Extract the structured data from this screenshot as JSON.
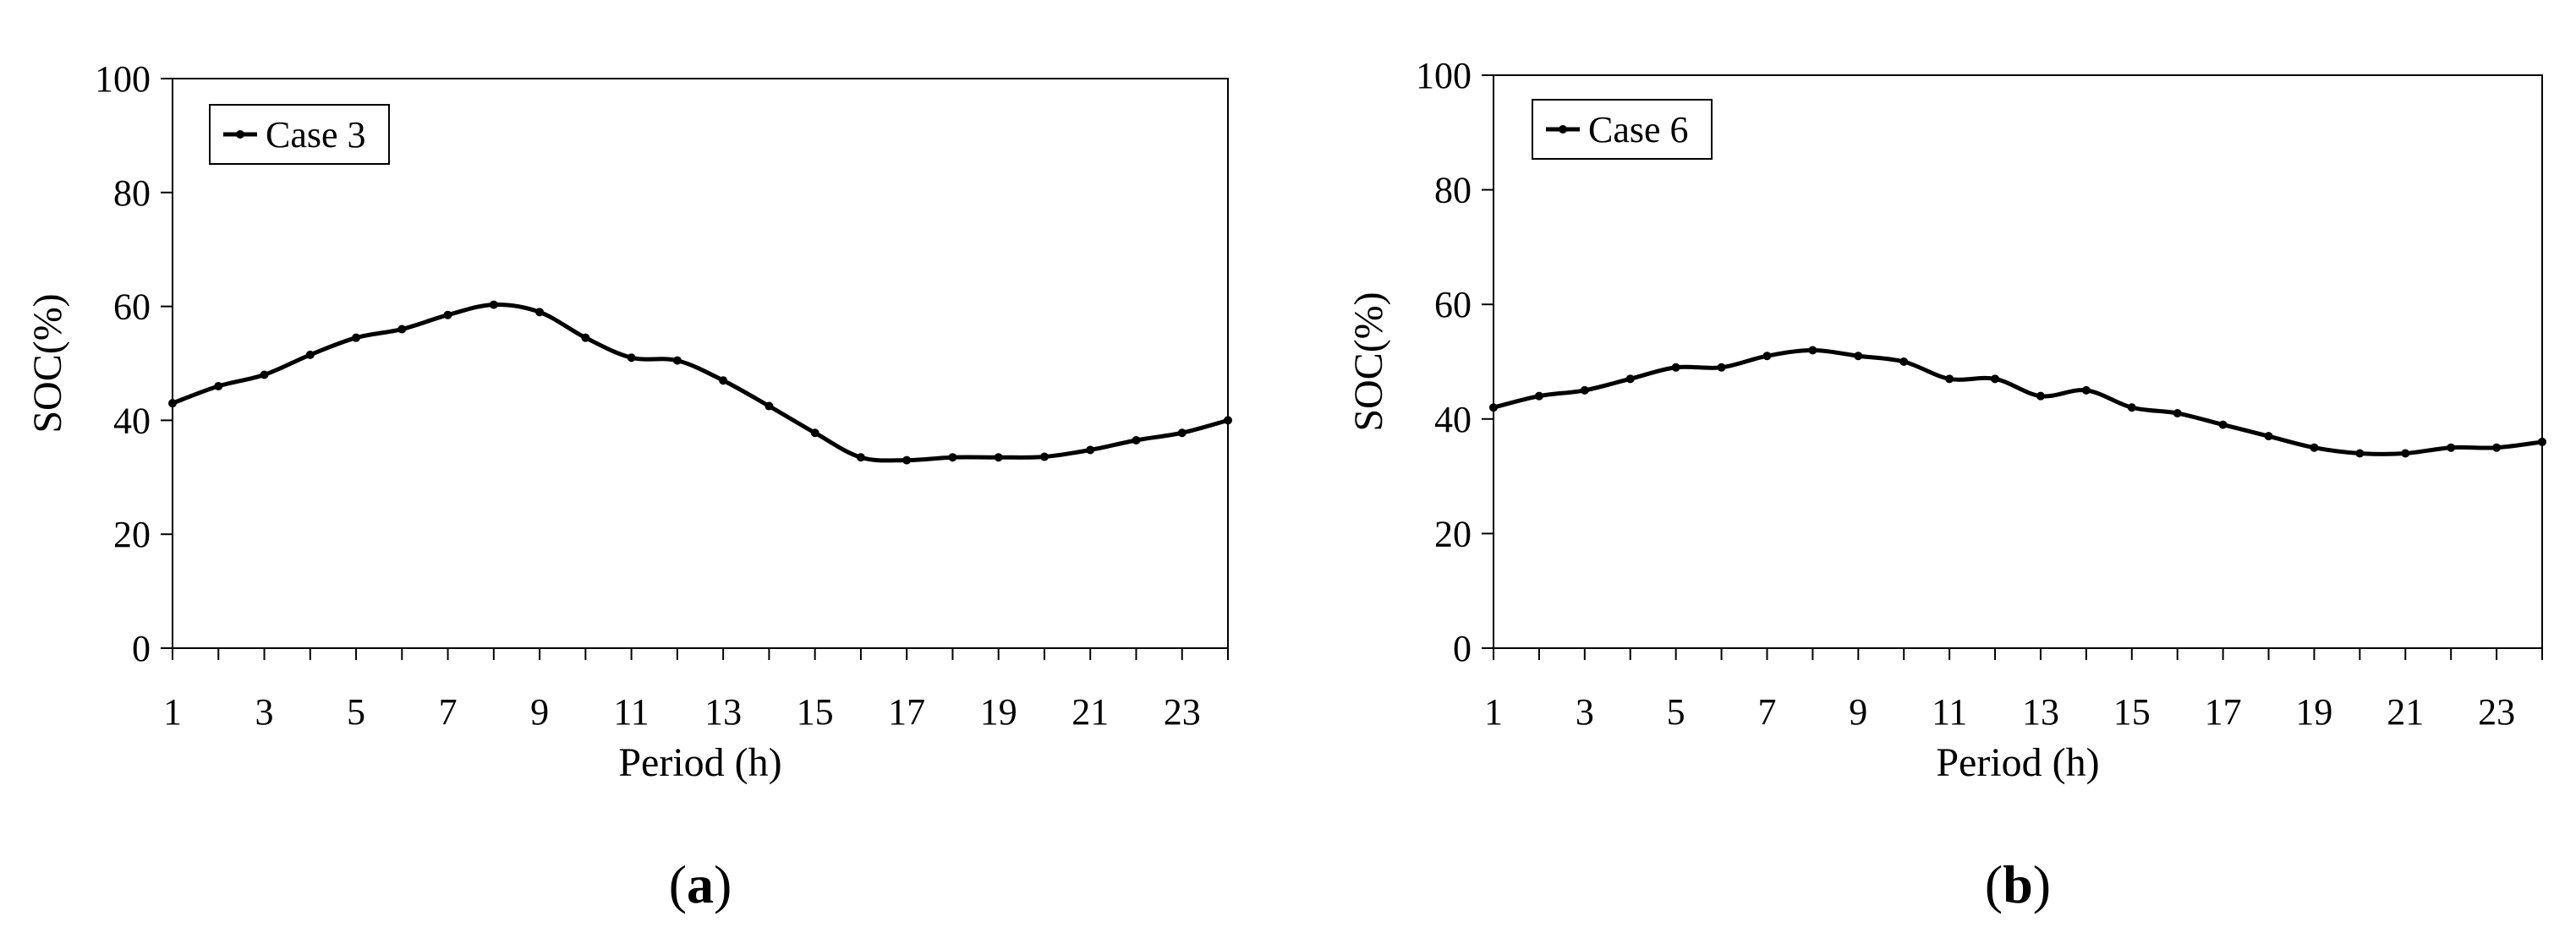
{
  "chart_data": [
    {
      "type": "line",
      "panel_label": "(a)",
      "xlabel": "Period (h)",
      "ylabel": "SOC(%)",
      "xlim": [
        1,
        24
      ],
      "ylim": [
        0,
        100
      ],
      "x_tick_labels": [
        "1",
        "3",
        "5",
        "7",
        "9",
        "11",
        "13",
        "15",
        "17",
        "19",
        "21",
        "23"
      ],
      "y_tick_labels": [
        "0",
        "20",
        "40",
        "60",
        "80",
        "100"
      ],
      "grid": false,
      "legend_position": "top-left",
      "series": [
        {
          "name": "Case 3",
          "color": "#000000",
          "x": [
            1,
            2,
            3,
            4,
            5,
            6,
            7,
            8,
            9,
            10,
            11,
            12,
            13,
            14,
            15,
            16,
            17,
            18,
            19,
            20,
            21,
            22,
            23,
            24
          ],
          "y": [
            43,
            46,
            48,
            51.5,
            54.5,
            56,
            58.5,
            60.3,
            59,
            54.5,
            51,
            50.5,
            47,
            42.5,
            37.8,
            33.5,
            33,
            33.5,
            33.5,
            33.6,
            34.8,
            36.5,
            37.8,
            40
          ]
        }
      ]
    },
    {
      "type": "line",
      "panel_label": "(b)",
      "xlabel": "Period (h)",
      "ylabel": "SOC(%)",
      "xlim": [
        1,
        24
      ],
      "ylim": [
        0,
        100
      ],
      "x_tick_labels": [
        "1",
        "3",
        "5",
        "7",
        "9",
        "11",
        "13",
        "15",
        "17",
        "19",
        "21",
        "23"
      ],
      "y_tick_labels": [
        "0",
        "20",
        "40",
        "60",
        "80",
        "100"
      ],
      "grid": false,
      "legend_position": "top-left",
      "series": [
        {
          "name": "Case 6",
          "color": "#000000",
          "x": [
            1,
            2,
            3,
            4,
            5,
            6,
            7,
            8,
            9,
            10,
            11,
            12,
            13,
            14,
            15,
            16,
            17,
            18,
            19,
            20,
            21,
            22,
            23,
            24
          ],
          "y": [
            42,
            44,
            45,
            47,
            49,
            49,
            51,
            52,
            51,
            50,
            47,
            47,
            44,
            45,
            42,
            41,
            39,
            37,
            35,
            34,
            34,
            35,
            35,
            36
          ]
        }
      ]
    }
  ]
}
